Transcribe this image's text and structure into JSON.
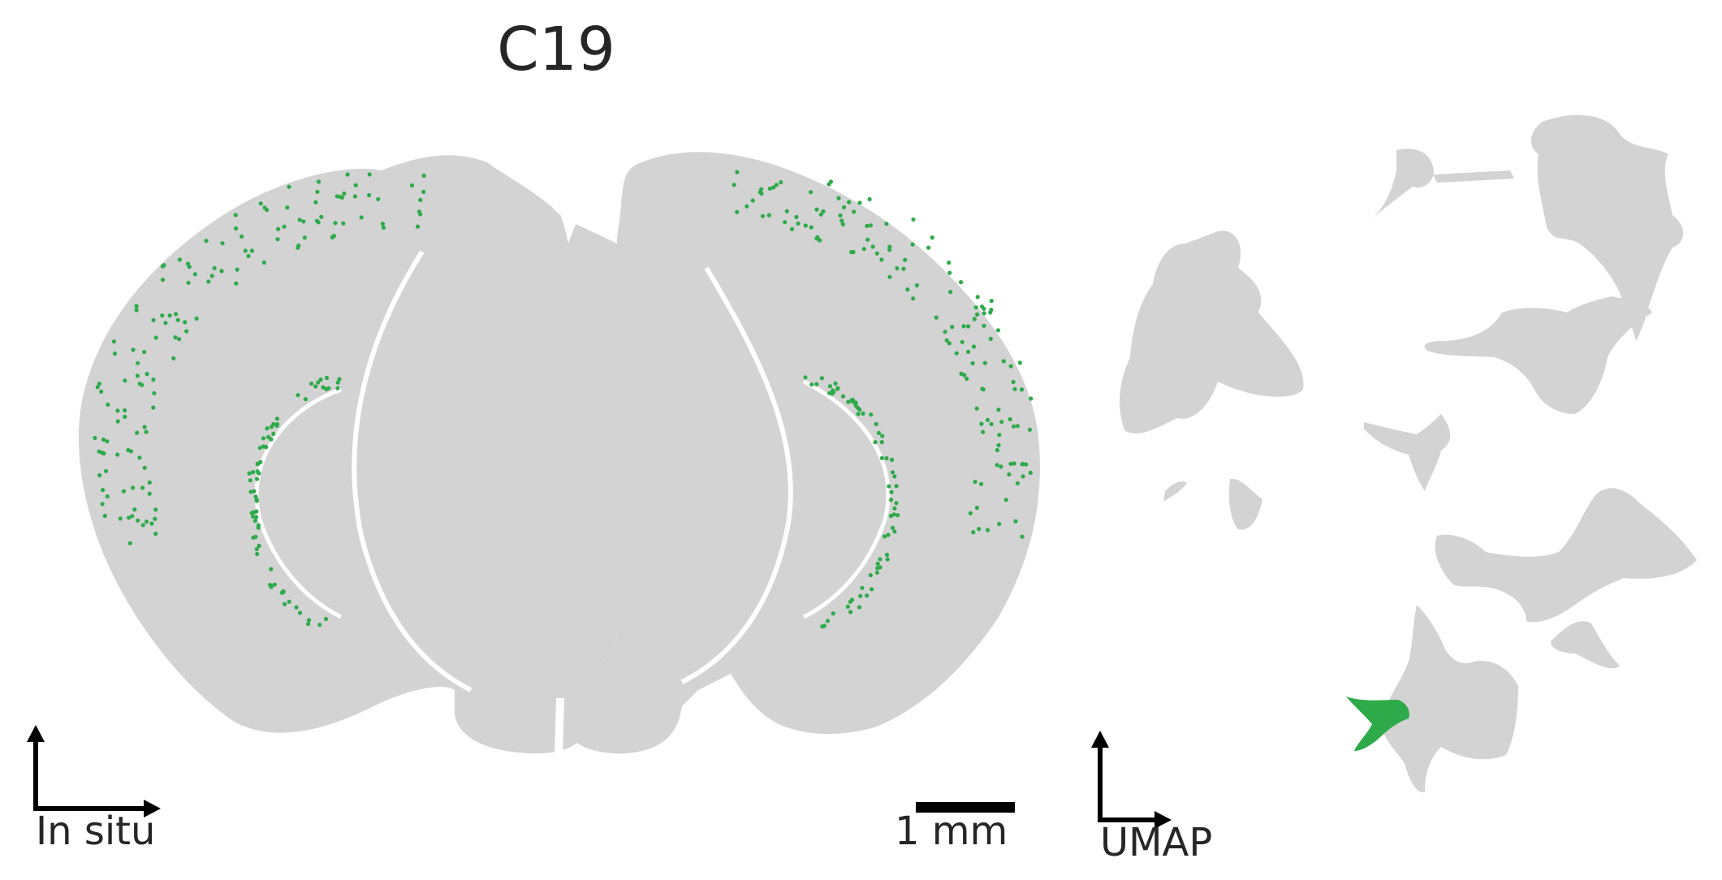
{
  "title": "C19",
  "insitu": {
    "axis_label": "In situ",
    "scale_bar_label": "1 mm"
  },
  "umap": {
    "axis_label": "UMAP"
  },
  "colors": {
    "background_cells": "#d3d3d3",
    "highlight_cells": "#2eaa4a",
    "axis": "#000000",
    "text": "#262626"
  }
}
